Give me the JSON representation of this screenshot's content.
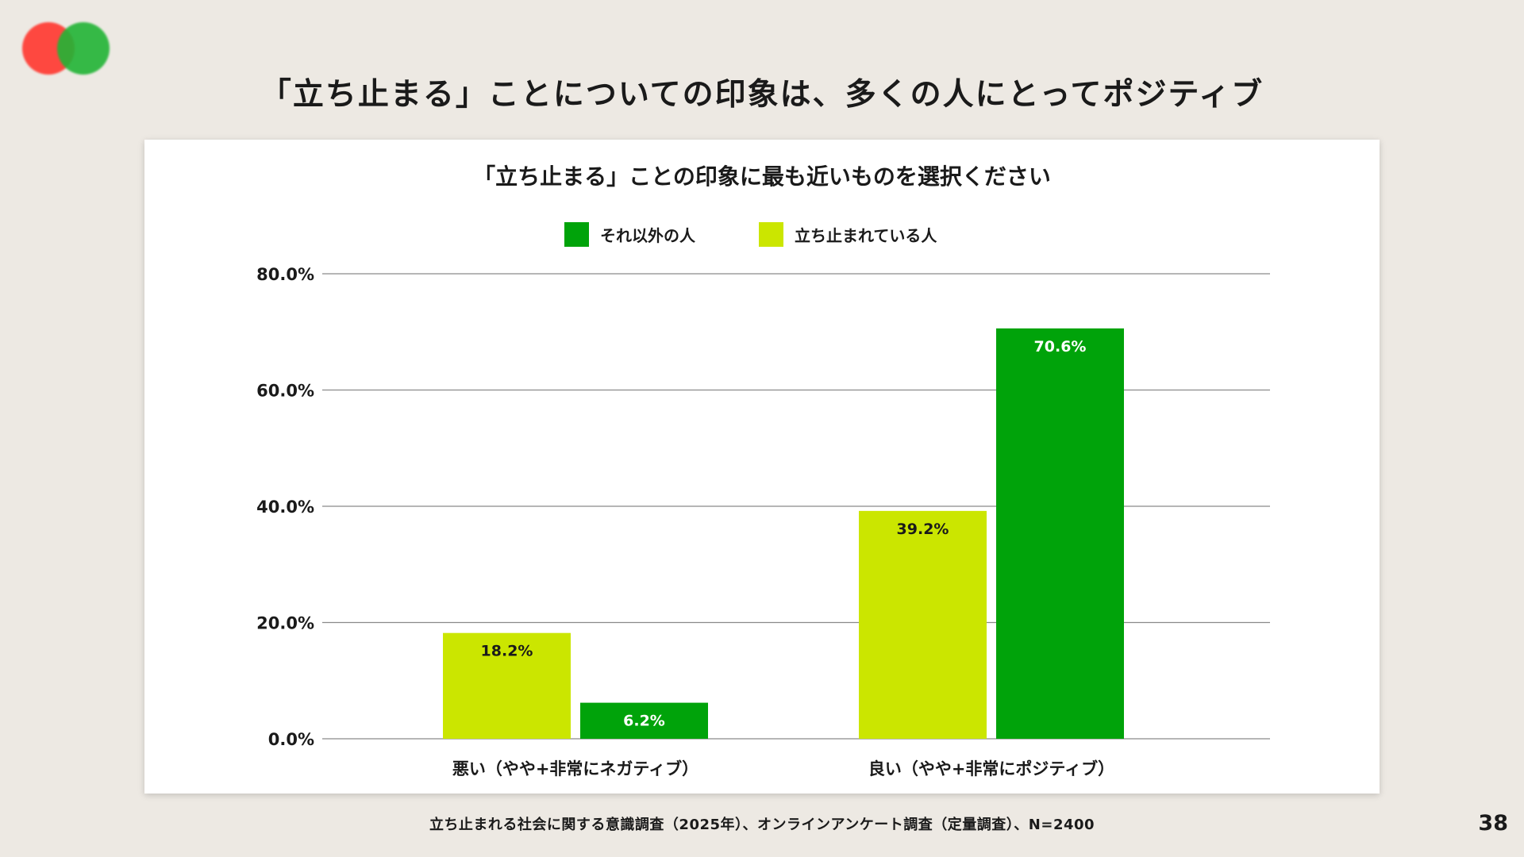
{
  "slide": {
    "title": "「立ち止まる」ことについての印象は、多くの人にとってポジティブ",
    "footnote": "立ち止まれる社会に関する意識調査（2025年）、オンラインアンケート調査（定量調査）、N=2400",
    "page_number": "38"
  },
  "logo": {
    "colors": [
      "#ff4038",
      "#22b436"
    ]
  },
  "chart_data": {
    "type": "bar",
    "title": "「立ち止まる」ことの印象に最も近いものを選択ください",
    "categories": [
      "悪い（やや+非常にネガティブ）",
      "良い（やや+非常にポジティブ）"
    ],
    "series": [
      {
        "name": "立ち止まれている人",
        "color": "#cbe600",
        "values": [
          18.2,
          39.2
        ],
        "labels": [
          "18.2%",
          "39.2%"
        ]
      },
      {
        "name": "それ以外の人",
        "color": "#00a30a",
        "values": [
          6.2,
          70.6
        ],
        "labels": [
          "6.2%",
          "70.6%"
        ]
      }
    ],
    "legend": {
      "order": [
        "それ以外の人",
        "立ち止まれている人"
      ],
      "placement": "top-center"
    },
    "ylim": [
      0,
      80
    ],
    "yticks": [
      "0.0%",
      "20.0%",
      "40.0%",
      "60.0%",
      "80.0%"
    ],
    "grid": true,
    "xlabel": "",
    "ylabel": ""
  }
}
